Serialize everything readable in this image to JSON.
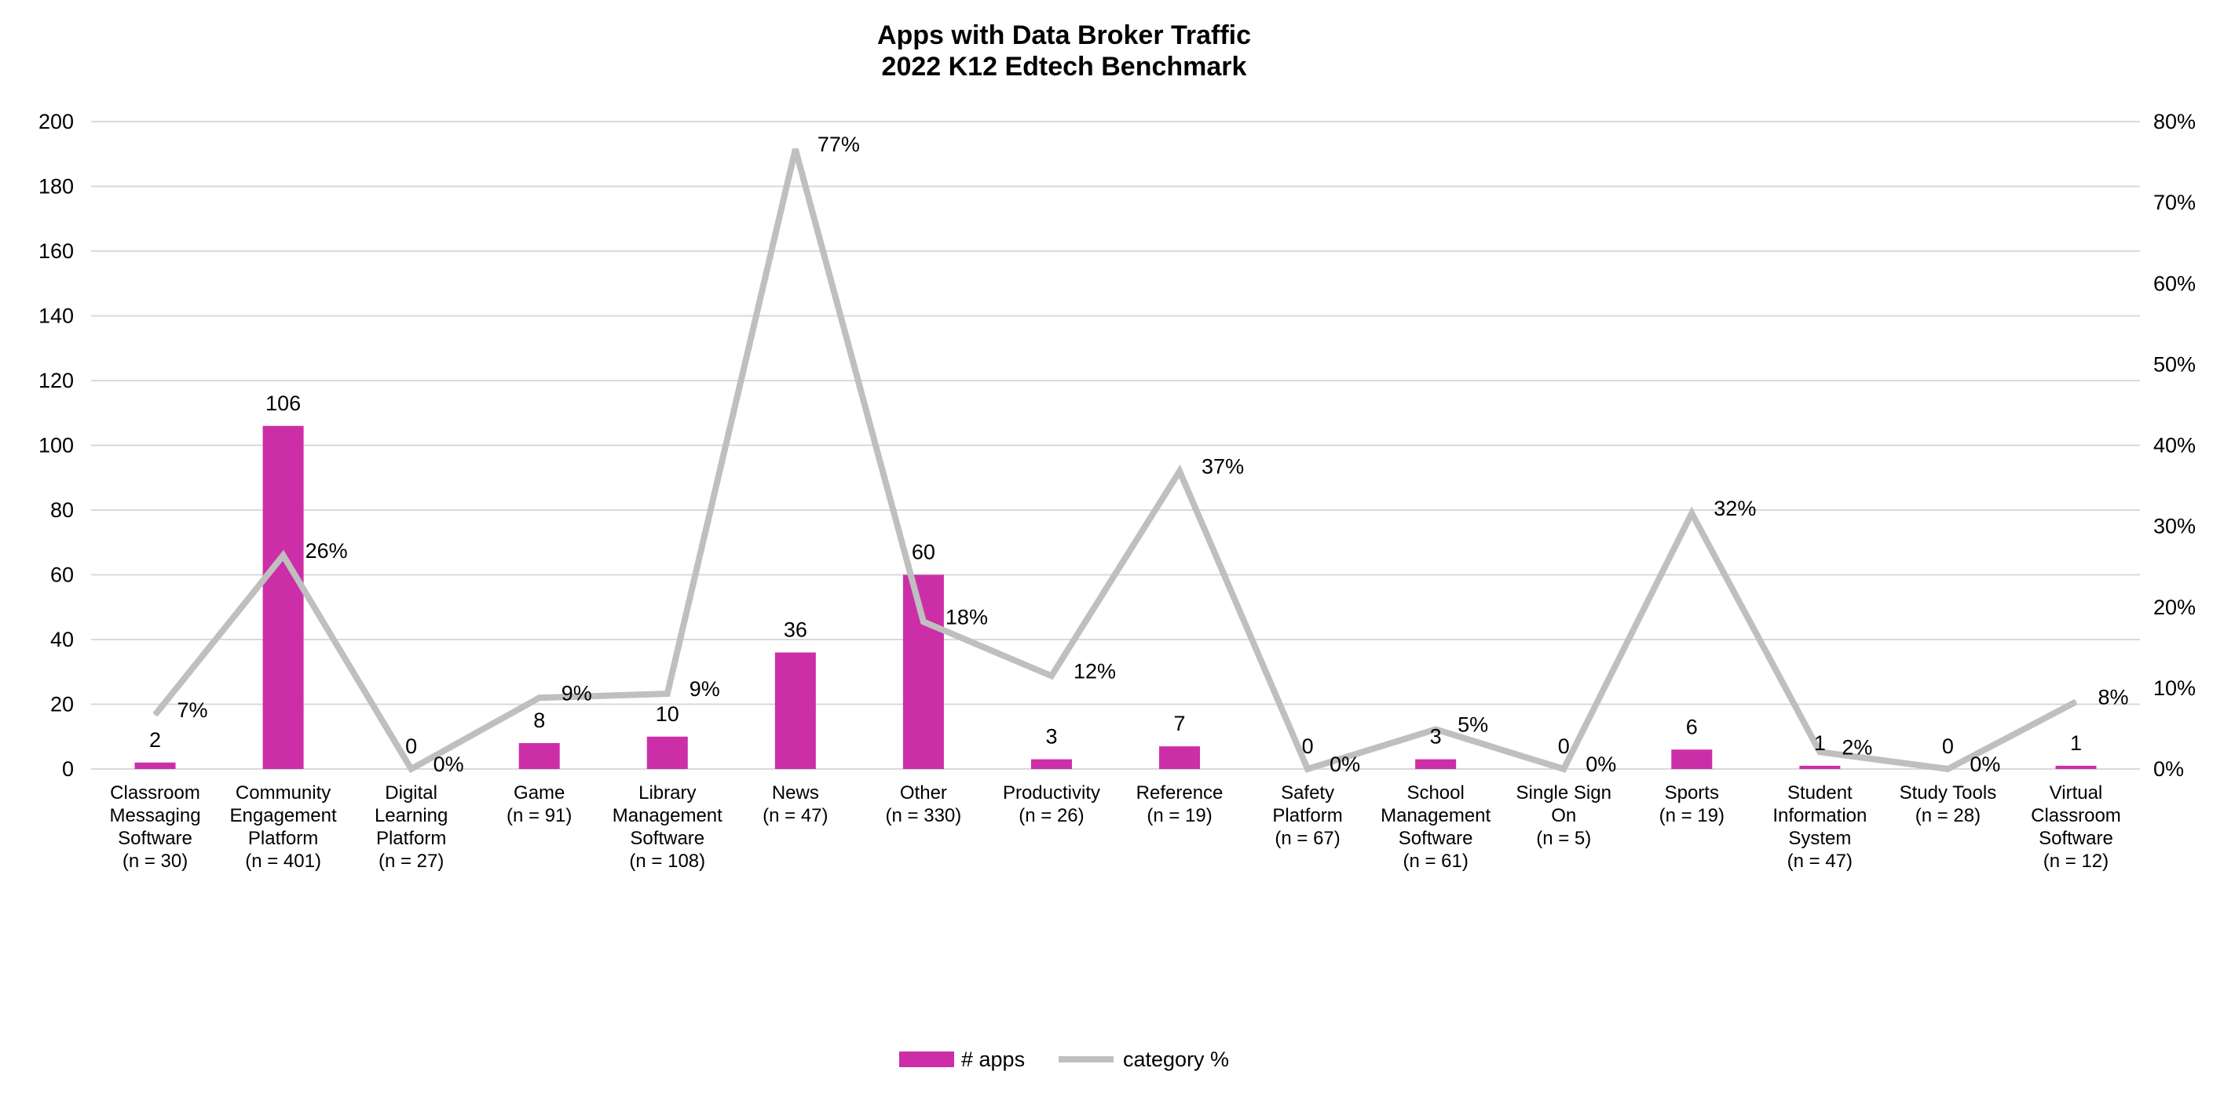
{
  "chart_data": {
    "type": "bar",
    "title": "Apps with Data Broker Traffic",
    "subtitle": "2022 K12 Edtech Benchmark",
    "categories": [
      [
        "Classroom",
        "Messaging",
        "Software",
        "(n = 30)"
      ],
      [
        "Community",
        "Engagement",
        "Platform",
        "(n = 401)"
      ],
      [
        "Digital",
        "Learning",
        "Platform",
        "(n = 27)"
      ],
      [
        "Game",
        "(n = 91)"
      ],
      [
        "Library",
        "Management",
        "Software",
        "(n = 108)"
      ],
      [
        "News",
        "(n = 47)"
      ],
      [
        "Other",
        "(n = 330)"
      ],
      [
        "Productivity",
        "(n = 26)"
      ],
      [
        "Reference",
        "(n = 19)"
      ],
      [
        "Safety",
        "Platform",
        "(n = 67)"
      ],
      [
        "School",
        "Management",
        "Software",
        "(n = 61)"
      ],
      [
        "Single Sign",
        "On",
        "(n = 5)"
      ],
      [
        "Sports",
        "(n = 19)"
      ],
      [
        "Student",
        "Information",
        "System",
        "(n = 47)"
      ],
      [
        "Study Tools",
        "(n = 28)"
      ],
      [
        "Virtual",
        "Classroom",
        "Software",
        "(n = 12)"
      ]
    ],
    "series": [
      {
        "name": "# apps",
        "type": "bar",
        "axis": "left",
        "color": "#cc2ea8",
        "values": [
          2,
          106,
          0,
          8,
          10,
          36,
          60,
          3,
          7,
          0,
          3,
          0,
          6,
          1,
          0,
          1
        ],
        "labels": [
          "2",
          "106",
          "0",
          "8",
          "10",
          "36",
          "60",
          "3",
          "7",
          "0",
          "3",
          "0",
          "6",
          "1",
          "0",
          "1"
        ]
      },
      {
        "name": "category %",
        "type": "line",
        "axis": "right",
        "color": "#bfbfbf",
        "values": [
          6.7,
          26.4,
          0,
          8.8,
          9.3,
          76.6,
          18.2,
          11.5,
          36.8,
          0,
          4.9,
          0,
          31.6,
          2.1,
          0,
          8.3
        ],
        "labels": [
          "7%",
          "26%",
          "0%",
          "9%",
          "9%",
          "77%",
          "18%",
          "12%",
          "37%",
          "0%",
          "5%",
          "0%",
          "32%",
          "2%",
          "0%",
          "8%"
        ]
      }
    ],
    "y_left": {
      "min": 0,
      "max": 200,
      "step": 20,
      "ticks": [
        "0",
        "20",
        "40",
        "60",
        "80",
        "100",
        "120",
        "140",
        "160",
        "180",
        "200"
      ]
    },
    "y_right": {
      "min": 0,
      "max": 80,
      "step": 10,
      "ticks": [
        "0%",
        "10%",
        "20%",
        "30%",
        "40%",
        "50%",
        "60%",
        "70%",
        "80%"
      ]
    },
    "grid": true,
    "legend": {
      "position": "bottom-center",
      "items": [
        "# apps",
        "category %"
      ]
    }
  }
}
